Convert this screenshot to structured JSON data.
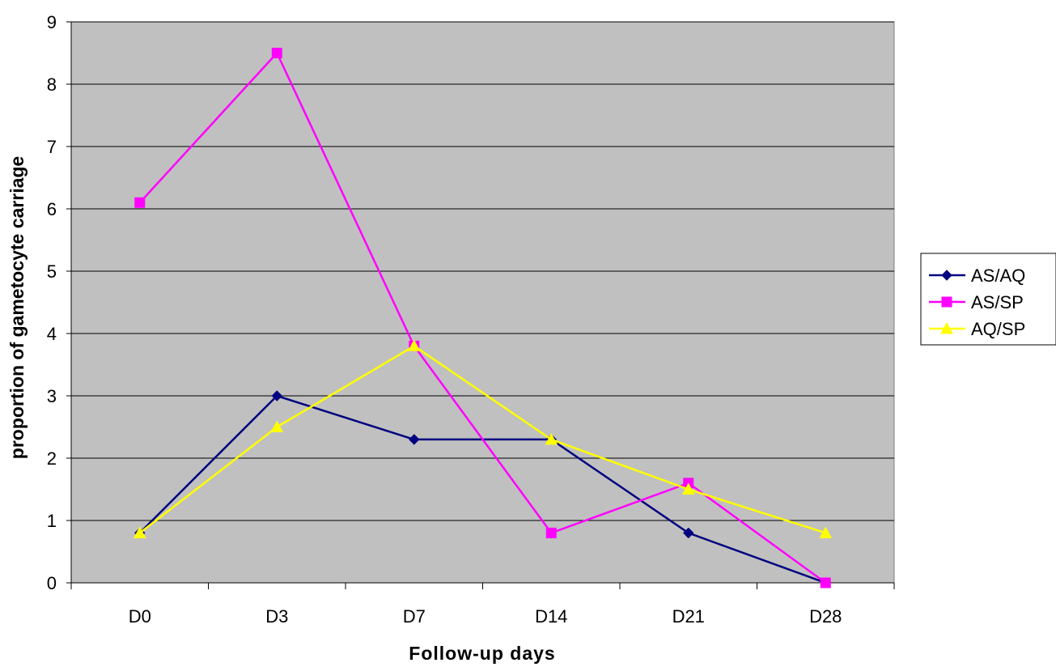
{
  "chart_data": {
    "type": "line",
    "categories": [
      "D0",
      "D3",
      "D7",
      "D14",
      "D21",
      "D28"
    ],
    "series": [
      {
        "name": "AS/AQ",
        "values": [
          0.8,
          3.0,
          2.3,
          2.3,
          0.8,
          0.0
        ],
        "color": "#000080",
        "marker": "diamond"
      },
      {
        "name": "AS/SP",
        "values": [
          6.1,
          8.5,
          3.8,
          0.8,
          1.6,
          0.0
        ],
        "color": "#ff00ff",
        "marker": "square"
      },
      {
        "name": "AQ/SP",
        "values": [
          0.8,
          2.5,
          3.8,
          2.3,
          1.5,
          0.8
        ],
        "color": "#ffff00",
        "marker": "triangle"
      }
    ],
    "xlabel": "Follow-up days",
    "ylabel": "proportion of gametocyte carriage",
    "ylim": [
      0,
      9
    ],
    "yticks": [
      0,
      1,
      2,
      3,
      4,
      5,
      6,
      7,
      8,
      9
    ],
    "grid": true,
    "plot_background": "#c0c0c0",
    "legend_position": "right"
  }
}
